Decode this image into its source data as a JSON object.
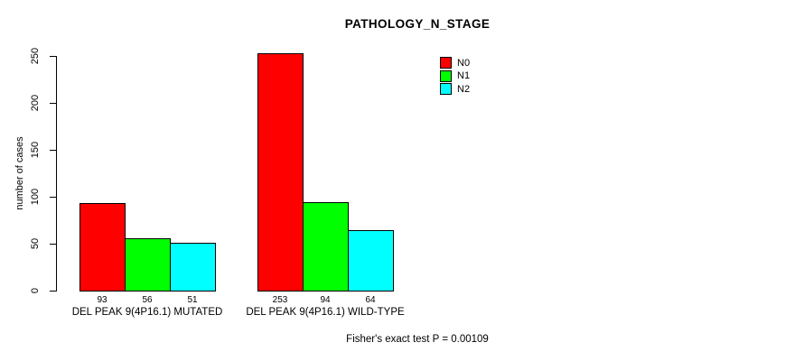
{
  "chart_data": {
    "type": "bar",
    "title": "PATHOLOGY_N_STAGE",
    "xlabel": "",
    "ylabel": "number of cases",
    "ylim": [
      0,
      250
    ],
    "yticks": [
      0,
      50,
      100,
      150,
      200,
      250
    ],
    "grid": false,
    "categories": [
      "DEL PEAK 9(4P16.1) MUTATED",
      "DEL PEAK 9(4P16.1) WILD-TYPE"
    ],
    "series": [
      {
        "name": "N0",
        "color": "#ff0000",
        "values": [
          93,
          253
        ]
      },
      {
        "name": "N1",
        "color": "#00ff00",
        "values": [
          56,
          94
        ]
      },
      {
        "name": "N2",
        "color": "#00ffff",
        "values": [
          51,
          64
        ]
      }
    ],
    "bar_value_labels": [
      [
        93,
        56,
        51
      ],
      [
        253,
        94,
        64
      ]
    ],
    "legend": {
      "position": "top-right",
      "entries": [
        {
          "label": "N0",
          "color": "#ff0000"
        },
        {
          "label": "N1",
          "color": "#00ff00"
        },
        {
          "label": "N2",
          "color": "#00ffff"
        }
      ]
    },
    "footnote": "Fisher's exact test P = 0.00109"
  }
}
